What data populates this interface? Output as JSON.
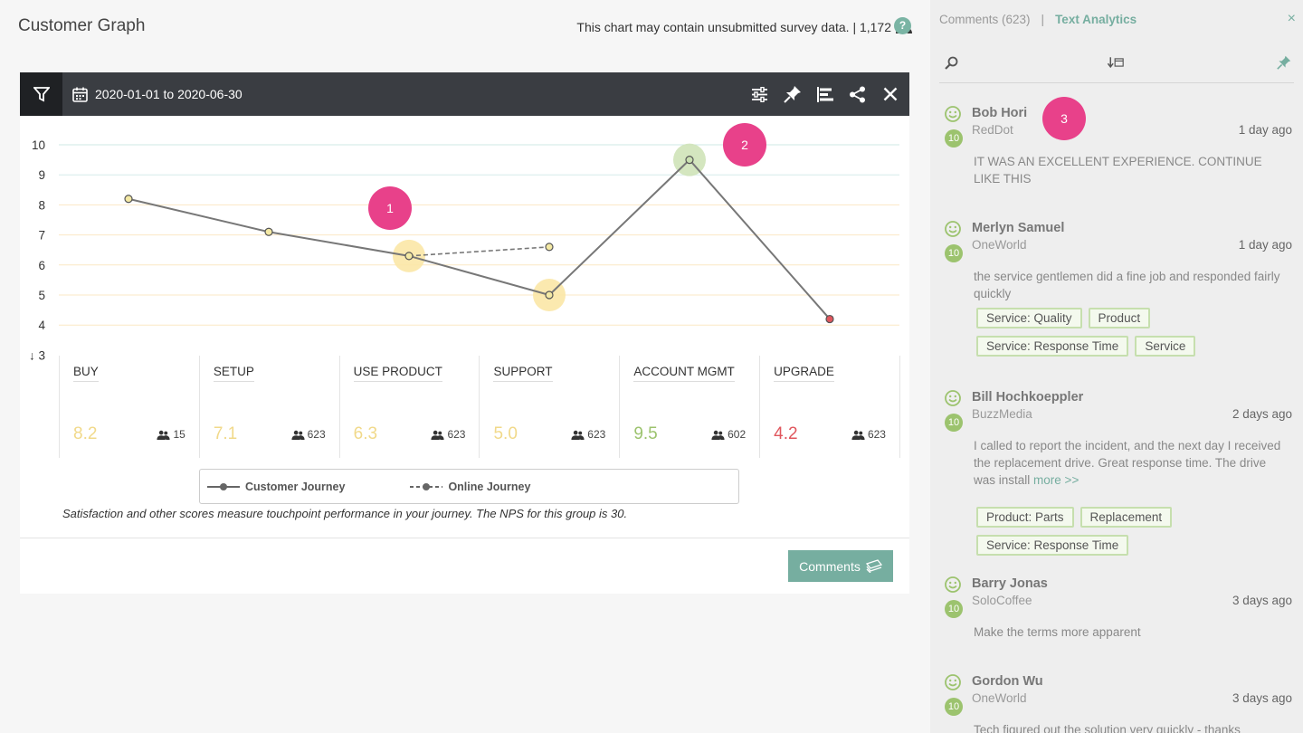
{
  "header": {
    "title": "Customer Graph",
    "notice": "This chart may contain unsubmitted survey data. | 1,172",
    "help": "?"
  },
  "toolbar": {
    "date_range": "2020-01-01 to 2020-06-30",
    "tools": [
      "sliders-icon",
      "pin-icon",
      "bars-icon",
      "share-icon",
      "close-icon"
    ]
  },
  "chart_data": {
    "type": "line",
    "categories": [
      "BUY",
      "SETUP",
      "USE PRODUCT",
      "SUPPORT",
      "ACCOUNT MGMT",
      "UPGRADE"
    ],
    "series": [
      {
        "name": "Customer Journey",
        "values": [
          8.2,
          7.1,
          6.3,
          5.0,
          9.5,
          4.2
        ]
      },
      {
        "name": "Online Journey",
        "values": [
          null,
          null,
          6.3,
          6.6,
          null,
          null
        ]
      }
    ],
    "y_ticks": [
      "10",
      "9",
      "8",
      "7",
      "6",
      "5",
      "4",
      "↓ 3"
    ],
    "ylim": [
      3,
      10
    ],
    "highlights": [
      2,
      3,
      4
    ],
    "grid": true,
    "legend": "bottom"
  },
  "touchpoints": [
    {
      "name": "BUY",
      "score": "8.2",
      "count": "15",
      "color": "#f1d98a"
    },
    {
      "name": "SETUP",
      "score": "7.1",
      "count": "623",
      "color": "#f1d98a"
    },
    {
      "name": "USE PRODUCT",
      "score": "6.3",
      "count": "623",
      "color": "#f1d98a"
    },
    {
      "name": "SUPPORT",
      "score": "5.0",
      "count": "623",
      "color": "#f1d98a"
    },
    {
      "name": "ACCOUNT MGMT",
      "score": "9.5",
      "count": "602",
      "color": "#9cc36e"
    },
    {
      "name": "UPGRADE",
      "score": "4.2",
      "count": "623",
      "color": "#e0565d"
    }
  ],
  "legend": {
    "customer": "Customer Journey",
    "online": "Online Journey"
  },
  "caption": "Satisfaction and other scores measure touchpoint performance in your journey. The NPS for this group is 30.",
  "comments_button": "Comments",
  "panel": {
    "tab_comments": "Comments (623)",
    "separator": "|",
    "tab_text": "Text Analytics",
    "close": "×"
  },
  "comments": [
    {
      "name": "Bob Hori",
      "company": "RedDot",
      "time": "1 day ago",
      "score": "10",
      "text": "IT WAS AN EXCELLENT EXPERIENCE. CONTINUE LIKE THIS",
      "tags": []
    },
    {
      "name": "Merlyn Samuel",
      "company": "OneWorld",
      "time": "1 day ago",
      "score": "10",
      "text": "the service gentlemen did a fine job and responded fairly quickly",
      "tags": [
        "Service: Quality",
        "Product",
        "Service: Response Time",
        "Service"
      ]
    },
    {
      "name": "Bill Hochkoeppler",
      "company": "BuzzMedia",
      "time": "2 days ago",
      "score": "10",
      "text": "I called to report the incident, and the next day I received the replacement drive. Great response time. The drive was install",
      "more": "more >>",
      "tags": [
        "Product: Parts",
        "Replacement",
        "Service: Response Time"
      ]
    },
    {
      "name": "Barry Jonas",
      "company": "SoloCoffee",
      "time": "3 days ago",
      "score": "10",
      "text": "Make the terms more apparent",
      "tags": []
    },
    {
      "name": "Gordon Wu",
      "company": "OneWorld",
      "time": "3 days ago",
      "score": "10",
      "text": "Tech figured out the solution very quickly - thanks",
      "tags": []
    }
  ],
  "markers": [
    "1",
    "2",
    "3"
  ]
}
